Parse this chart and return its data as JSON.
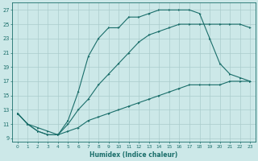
{
  "xlabel": "Humidex (Indice chaleur)",
  "background_color": "#cce8e8",
  "grid_color": "#aacccc",
  "line_color": "#1a6e6a",
  "xlim": [
    -0.5,
    23.5
  ],
  "ylim": [
    8.5,
    28
  ],
  "xticks": [
    0,
    1,
    2,
    3,
    4,
    5,
    6,
    7,
    8,
    9,
    10,
    11,
    12,
    13,
    14,
    15,
    16,
    17,
    18,
    19,
    20,
    21,
    22,
    23
  ],
  "yticks": [
    9,
    11,
    13,
    15,
    17,
    19,
    21,
    23,
    25,
    27
  ],
  "line_steep_x": [
    0,
    1,
    2,
    3,
    4,
    5,
    6,
    7,
    8,
    9,
    10,
    11,
    12,
    13,
    14,
    15,
    16,
    17,
    18,
    19,
    20,
    21,
    22,
    23
  ],
  "line_steep_y": [
    12.5,
    11.0,
    10.0,
    9.5,
    9.5,
    11.5,
    15.5,
    20.5,
    23.0,
    24.5,
    24.5,
    26.0,
    26.0,
    26.5,
    27.0,
    27.0,
    27.0,
    27.0,
    26.5,
    23.0,
    19.5,
    18.0,
    17.5,
    17.0
  ],
  "line_mid_x": [
    0,
    1,
    2,
    3,
    4,
    5,
    6,
    7,
    8,
    9,
    10,
    11,
    12,
    13,
    14,
    15,
    16,
    17,
    18,
    19,
    20,
    21,
    22,
    23
  ],
  "line_mid_y": [
    12.5,
    11.0,
    10.0,
    9.5,
    9.5,
    11.0,
    13.0,
    14.5,
    16.5,
    18.0,
    19.5,
    21.0,
    22.5,
    23.5,
    24.0,
    24.5,
    25.0,
    25.0,
    25.0,
    25.0,
    25.0,
    25.0,
    25.0,
    24.5
  ],
  "line_slow_x": [
    0,
    1,
    2,
    3,
    4,
    5,
    6,
    7,
    8,
    9,
    10,
    11,
    12,
    13,
    14,
    15,
    16,
    17,
    18,
    19,
    20,
    21,
    22,
    23
  ],
  "line_slow_y": [
    12.5,
    11.0,
    10.5,
    10.0,
    9.5,
    10.0,
    10.5,
    11.5,
    12.0,
    12.5,
    13.0,
    13.5,
    14.0,
    14.5,
    15.0,
    15.5,
    16.0,
    16.5,
    16.5,
    16.5,
    16.5,
    17.0,
    17.0,
    17.0
  ]
}
